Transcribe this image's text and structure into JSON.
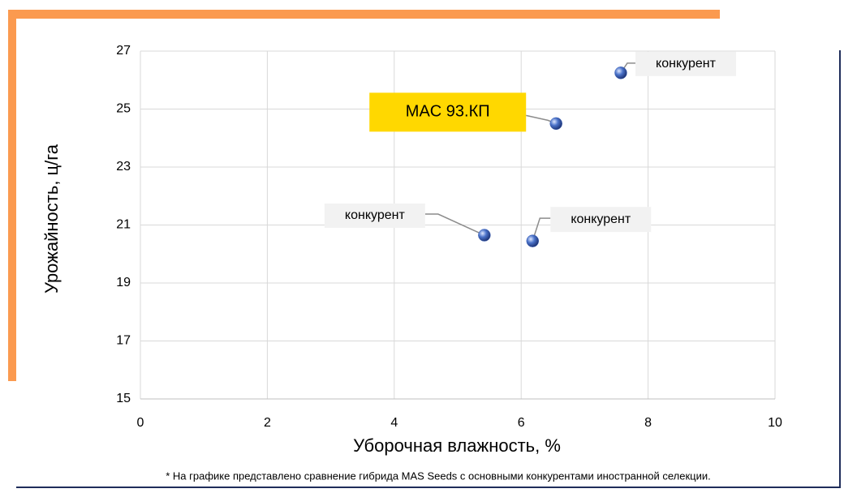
{
  "chart_data": {
    "type": "scatter",
    "x_label": "Уборочная влажность, %",
    "y_label": "Урожайность, ц/га",
    "x": [
      7.57,
      6.55,
      5.42,
      6.18
    ],
    "values": [
      26.25,
      24.5,
      20.65,
      20.45
    ],
    "point_labels": [
      "конкурент",
      "MAC 93.КП",
      "конкурент",
      "конкурент"
    ],
    "label_colors": [
      "#f2f2f2",
      "#ffd800",
      "#f2f2f2",
      "#f2f2f2"
    ],
    "color": "#3f63b8",
    "xlim": [
      0,
      10
    ],
    "xticks": [
      0,
      2,
      4,
      6,
      8,
      10
    ],
    "ylim": [
      15,
      27
    ],
    "yticks": [
      15,
      17,
      19,
      21,
      23,
      25,
      27
    ],
    "grid": true,
    "footnote": "* На графике представлено сравнение гибрида MAS Seeds с основными конкурентами иностранной селекции."
  }
}
